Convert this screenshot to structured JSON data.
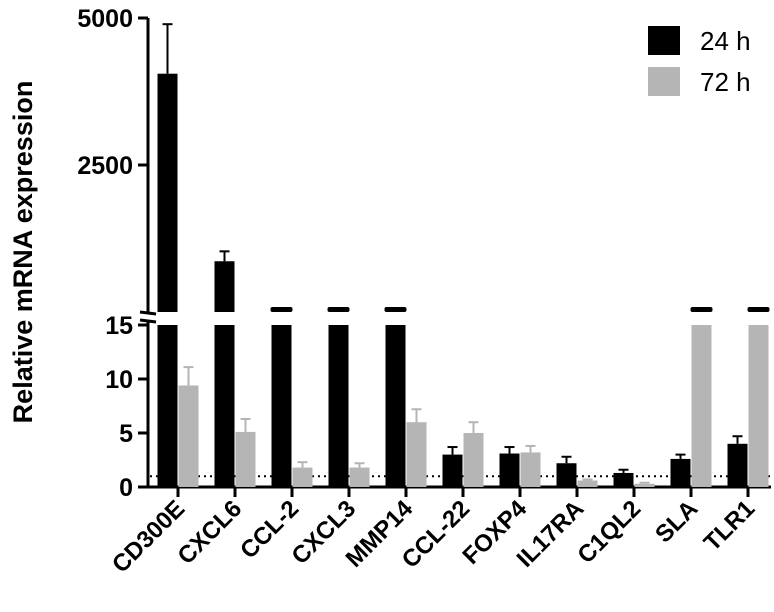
{
  "chart_data": {
    "type": "bar",
    "ylabel": "Relative mRNA expression",
    "categories": [
      "CD300E",
      "CXCL6",
      "CCL-2",
      "CXCL3",
      "MMP14",
      "CCL-22",
      "FOXP4",
      "IL17RA",
      "C1QL2",
      "SLA",
      "TLR1"
    ],
    "series": [
      {
        "name": "24 h",
        "color": "#000000",
        "values": [
          4100,
          1070,
          15,
          15,
          15,
          3.0,
          3.1,
          2.2,
          1.3,
          2.6,
          4.0
        ],
        "errors": [
          800,
          160,
          0,
          0,
          0,
          0.7,
          0.6,
          0.6,
          0.3,
          0.4,
          0.7
        ]
      },
      {
        "name": "72 h",
        "color": "#b5b5b5",
        "values": [
          9.4,
          5.1,
          1.8,
          1.8,
          6.0,
          5.0,
          3.2,
          0.6,
          0.3,
          15,
          15
        ],
        "errors": [
          1.7,
          1.2,
          0.5,
          0.4,
          1.2,
          1.0,
          0.6,
          0.1,
          0.1,
          0,
          0
        ]
      }
    ],
    "y_ticks_upper": [
      "5000",
      "2500"
    ],
    "y_ticks_lower": [
      "15",
      "10",
      "5",
      "0"
    ],
    "ylim_lower": [
      0,
      15
    ],
    "ylim_upper": [
      250,
      5000
    ],
    "reference_line": 1,
    "legend_position": "top-right"
  }
}
